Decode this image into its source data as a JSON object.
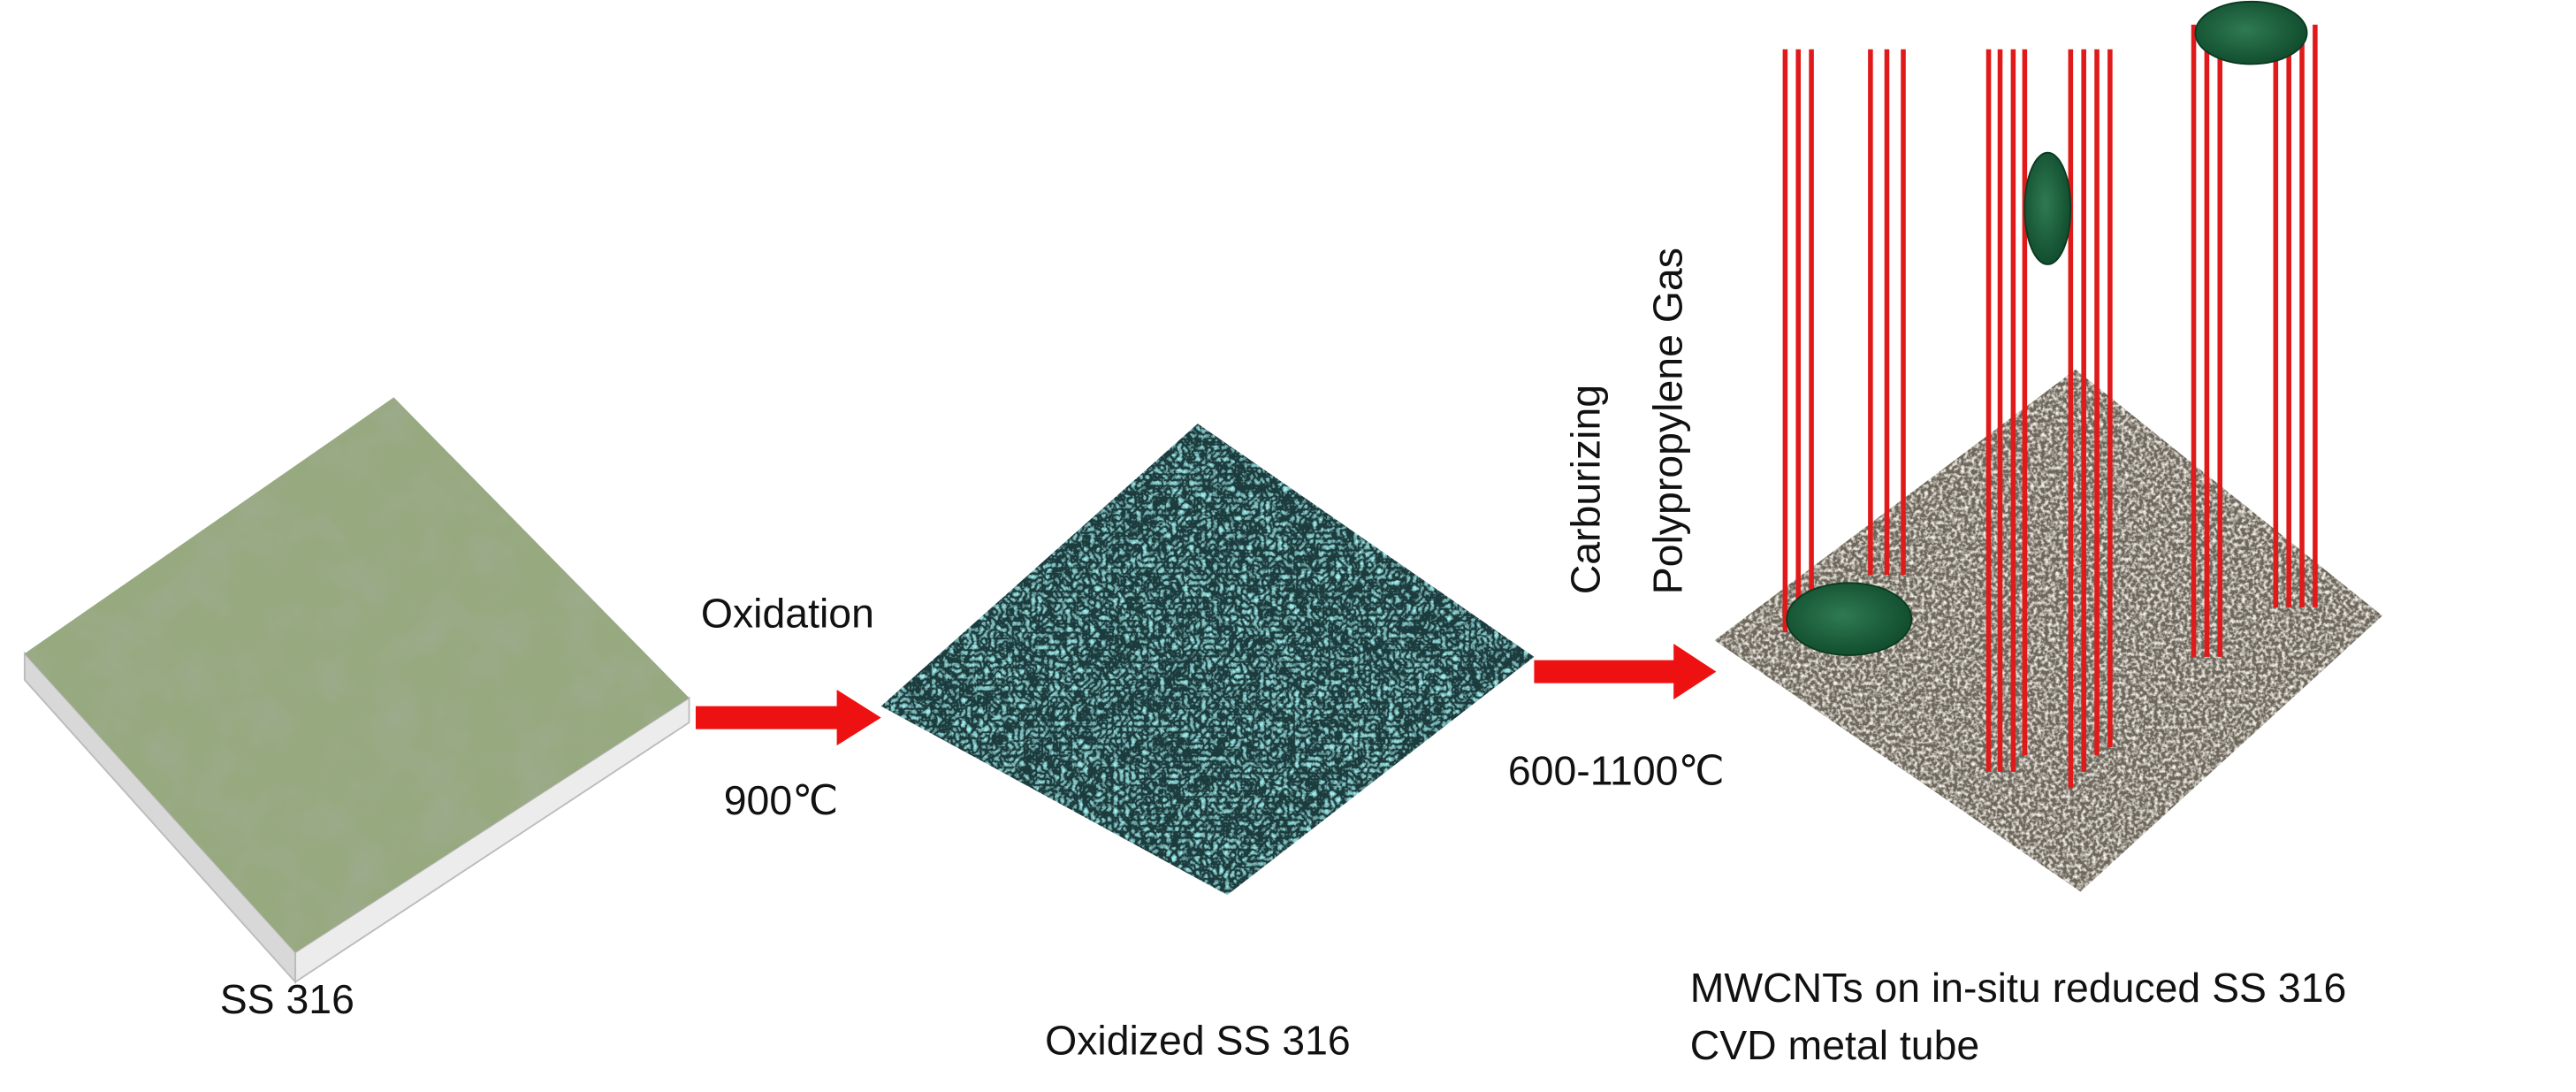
{
  "substrate": {
    "label": "SS 316"
  },
  "step1": {
    "process": "Oxidation",
    "temperature": "900℃"
  },
  "oxidized": {
    "label": "Oxidized SS 316"
  },
  "step2": {
    "process": [
      "Carburizing",
      "Polypropylene Gas"
    ],
    "temperature": "600-1100℃"
  },
  "product": {
    "label": [
      "MWCNTs on in-situ reduced SS 316",
      "CVD metal tube"
    ]
  }
}
